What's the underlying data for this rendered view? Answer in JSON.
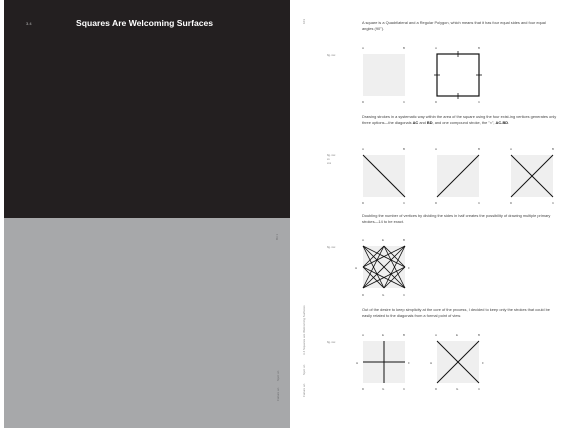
{
  "left_page": {
    "section_number": "3.4",
    "title": "Squares Are Welcoming Surfaces",
    "gray_side_page": "B3 1",
    "gray_side_right": "Spot on",
    "gray_side_left": "Failure an"
  },
  "right_page": {
    "page_number": "103",
    "side_running": "3.4  Squares are Welcoming Surfaces",
    "side_spot": "Spot on",
    "side_fail": "Failure an",
    "paragraphs": [
      "A square is a Quadrilateral and a Regular Polygon, which means that it has four equal sides and four equal angles (90°).",
      "Doubling the number of vertices by dividing the sides in half creates the possibility of drawing multiple primary strokes—14 to be exact.",
      "Out of the desire to keep simplicity at the core of the process, I decided to keep only the strokes that could be easily related to the diagonals from a formal point of view."
    ],
    "para2": {
      "part1": "Drawing strokes in a systematic way within the area of the square using the four exist-ing vertices generates only three options—the diagonals ",
      "b1": "AC",
      "part2": " and ",
      "b2": "BD",
      "part3": ", and one compound stroke, the \"×\", ",
      "b3": "AC-BD",
      "part4": "."
    },
    "fig_labels": [
      "fig. xxx",
      "fig. xxx",
      "fig. xxx",
      "fig. xxx"
    ],
    "fig2_label_lines": [
      "fig. xxx",
      "xx",
      "xxx"
    ],
    "vertex_labels": {
      "A": "A",
      "B": "B",
      "C": "C",
      "D": "D",
      "E": "E",
      "F": "F",
      "G": "G",
      "H": "H"
    }
  }
}
